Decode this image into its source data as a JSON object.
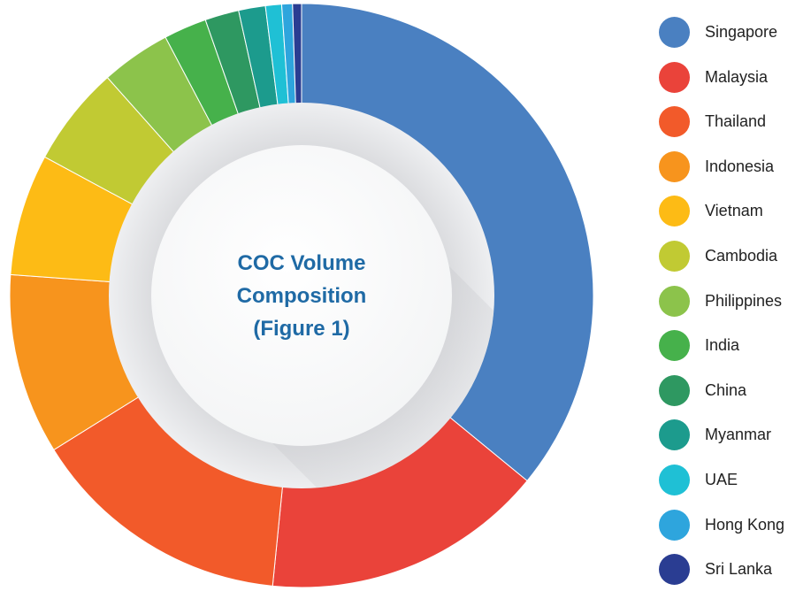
{
  "chart_data": {
    "type": "pie",
    "donut": true,
    "title_lines": [
      "COC Volume",
      "Composition",
      "(Figure 1)"
    ],
    "title_color": "#1f6aa5",
    "legend_position": "right",
    "slices": [
      {
        "label": "Singapore",
        "value": 36.3,
        "color": "#4a80c1"
      },
      {
        "label": "Malaysia",
        "value": 15.8,
        "color": "#ea433a"
      },
      {
        "label": "Thailand",
        "value": 14.7,
        "color": "#f25a2a"
      },
      {
        "label": "Indonesia",
        "value": 10.1,
        "color": "#f7941d"
      },
      {
        "label": "Vietnam",
        "value": 6.8,
        "color": "#fdbb15"
      },
      {
        "label": "Cambodia",
        "value": 5.6,
        "color": "#c1ca33"
      },
      {
        "label": "Philippines",
        "value": 3.9,
        "color": "#8cc34b"
      },
      {
        "label": "India",
        "value": 2.4,
        "color": "#46b14b"
      },
      {
        "label": "China",
        "value": 1.9,
        "color": "#2e9861"
      },
      {
        "label": "Myanmar",
        "value": 1.5,
        "color": "#1c9b8d"
      },
      {
        "label": "UAE",
        "value": 0.9,
        "color": "#1fc0d5"
      },
      {
        "label": "Hong Kong",
        "value": 0.6,
        "color": "#2ea5dd"
      },
      {
        "label": "Sri Lanka",
        "value": 0.5,
        "color": "#2a3d92"
      }
    ]
  }
}
